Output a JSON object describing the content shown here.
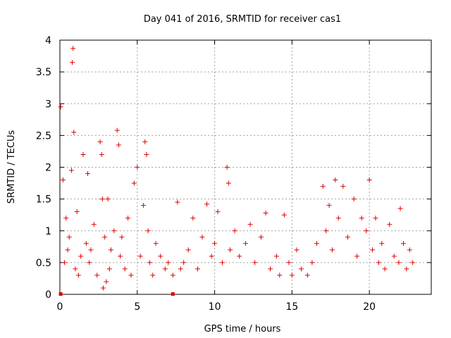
{
  "chart_data": {
    "type": "scatter",
    "title": "Day 041 of 2016, SRMTID for receiver cas1",
    "xlabel": "GPS time / hours",
    "ylabel": "SRMTID / TECUs",
    "xlim": [
      0,
      24
    ],
    "ylim": [
      0,
      4
    ],
    "xticks": [
      0,
      5,
      10,
      15,
      20
    ],
    "yticks": [
      0,
      0.5,
      1,
      1.5,
      2,
      2.5,
      3,
      3.5,
      4
    ],
    "xtick_labels": [
      "0",
      "5",
      "10",
      "15",
      "20"
    ],
    "ytick_labels": [
      "0",
      "0.5",
      "1",
      "1.5",
      "2",
      "2.5",
      "3",
      "3.5",
      "4"
    ],
    "grid": true,
    "legend": "none",
    "colors": {
      "series": "#e00000",
      "grid": "#a0a0a0",
      "axis": "#000000"
    },
    "marker": "plus",
    "series": [
      {
        "name": "SRMTID",
        "x": [
          0.05,
          0.2,
          0.3,
          0.4,
          0.5,
          0.6,
          0.75,
          0.8,
          0.85,
          0.9,
          1.0,
          1.1,
          1.2,
          1.35,
          1.5,
          1.7,
          1.8,
          1.9,
          2.0,
          2.2,
          2.4,
          2.6,
          2.7,
          2.75,
          2.8,
          2.9,
          3.0,
          3.1,
          3.2,
          3.3,
          3.5,
          3.7,
          3.8,
          3.9,
          4.0,
          4.2,
          4.4,
          4.6,
          4.8,
          5.0,
          5.2,
          5.4,
          5.5,
          5.6,
          5.7,
          5.8,
          6.0,
          6.2,
          6.5,
          6.8,
          7.0,
          7.3,
          7.6,
          7.8,
          8.0,
          8.3,
          8.6,
          8.9,
          9.2,
          9.5,
          9.8,
          10.0,
          10.2,
          10.5,
          10.8,
          10.9,
          11.0,
          11.3,
          11.6,
          12.0,
          12.3,
          12.6,
          13.0,
          13.3,
          13.6,
          14.0,
          14.2,
          14.5,
          14.8,
          15.0,
          15.3,
          15.6,
          16.0,
          16.3,
          16.6,
          17.0,
          17.2,
          17.4,
          17.6,
          17.8,
          18.0,
          18.3,
          18.6,
          19.0,
          19.2,
          19.5,
          19.8,
          20.0,
          20.2,
          20.4,
          20.6,
          20.8,
          21.0,
          21.3,
          21.6,
          21.9,
          22.0,
          22.2,
          22.4,
          22.6,
          22.8
        ],
        "y": [
          2.95,
          1.8,
          0.5,
          1.2,
          0.7,
          0.9,
          1.95,
          3.65,
          3.87,
          2.55,
          0.4,
          1.3,
          0.3,
          0.6,
          2.2,
          0.8,
          1.9,
          0.5,
          0.7,
          1.1,
          0.3,
          2.4,
          2.2,
          1.5,
          0.1,
          0.9,
          0.2,
          1.5,
          0.4,
          0.7,
          1.0,
          2.58,
          2.35,
          0.6,
          0.9,
          0.4,
          1.2,
          0.3,
          1.75,
          2.0,
          0.6,
          1.4,
          2.4,
          2.2,
          1.0,
          0.5,
          0.3,
          0.8,
          0.6,
          0.4,
          0.5,
          0.3,
          1.45,
          0.4,
          0.5,
          0.7,
          1.2,
          0.4,
          0.9,
          1.42,
          0.6,
          0.8,
          1.3,
          0.5,
          2.0,
          1.75,
          0.7,
          1.0,
          0.6,
          0.8,
          1.1,
          0.5,
          0.9,
          1.28,
          0.4,
          0.6,
          0.3,
          1.25,
          0.5,
          0.3,
          0.7,
          0.4,
          0.3,
          0.5,
          0.8,
          1.7,
          1.0,
          1.4,
          0.7,
          1.8,
          1.2,
          1.7,
          0.9,
          1.5,
          0.6,
          1.2,
          1.0,
          1.8,
          0.7,
          1.2,
          0.5,
          0.8,
          0.4,
          1.1,
          0.6,
          0.5,
          1.35,
          0.8,
          0.4,
          0.7,
          0.5
        ],
        "missing_markers_x": [
          0.05,
          7.3
        ]
      }
    ]
  }
}
